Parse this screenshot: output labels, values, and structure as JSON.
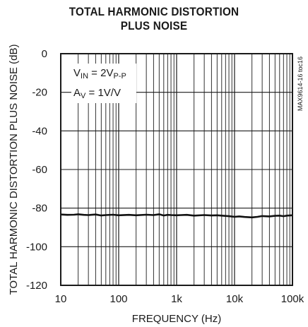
{
  "chart_data": {
    "type": "line",
    "title": "TOTAL HARMONIC DISTORTION",
    "subtitle": "PLUS NOISE",
    "xlabel": "FREQUENCY (Hz)",
    "ylabel": "TOTAL HARMONIC DISTORTION PLUS NOISE (dB)",
    "x_scale": "log",
    "xlim": [
      10,
      100000
    ],
    "ylim": [
      -120,
      0
    ],
    "x_ticks": [
      "10",
      "100",
      "1k",
      "10k",
      "100k"
    ],
    "y_ticks": [
      "0",
      "-20",
      "-40",
      "-60",
      "-80",
      "-100",
      "-120"
    ],
    "grid": true,
    "annotation": {
      "line1": {
        "prefix": "V",
        "sub": "IN",
        "rest": " = 2V",
        "sub2": "P-P"
      },
      "line2": {
        "prefix": "A",
        "sub": "V",
        "rest": " = 1V/V"
      }
    },
    "side_label": "MAX9614-16 toc16",
    "series": [
      {
        "x": [
          10,
          13,
          17,
          20,
          25,
          30,
          40,
          50,
          60,
          80,
          100,
          150,
          200,
          300,
          400,
          500,
          600,
          700,
          800,
          1000,
          1500,
          2000,
          3000,
          4000,
          5000,
          6000,
          8000,
          10000,
          12000,
          15000,
          20000,
          25000,
          30000,
          40000,
          50000,
          60000,
          70000,
          80000,
          100000
        ],
        "y": [
          -83.3,
          -83.5,
          -83.4,
          -83.2,
          -83.5,
          -83.6,
          -83.3,
          -83.8,
          -83.6,
          -83.4,
          -83.7,
          -83.5,
          -83.7,
          -83.4,
          -83.6,
          -83.2,
          -83.8,
          -83.5,
          -83.6,
          -83.7,
          -83.5,
          -83.9,
          -83.6,
          -83.8,
          -83.7,
          -83.9,
          -84.2,
          -84.5,
          -84.3,
          -84.6,
          -84.8,
          -84.5,
          -84.1,
          -84.3,
          -84.0,
          -83.9,
          -84.2,
          -83.9,
          -83.7
        ]
      }
    ]
  }
}
